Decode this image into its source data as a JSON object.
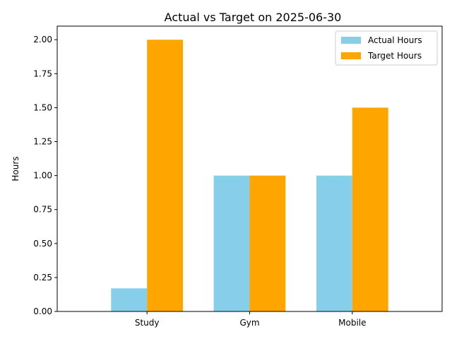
{
  "chart_data": {
    "type": "bar",
    "title": "Actual vs Target on 2025-06-30",
    "xlabel": "",
    "ylabel": "Hours",
    "categories": [
      "Study",
      "Gym",
      "Mobile"
    ],
    "series": [
      {
        "name": "Actual Hours",
        "values": [
          0.17,
          1.0,
          1.0
        ],
        "color": "#87ceeb"
      },
      {
        "name": "Target Hours",
        "values": [
          2.0,
          1.0,
          1.5
        ],
        "color": "#ffa500"
      }
    ],
    "ylim": [
      0,
      2.1
    ],
    "yticks": [
      "0.00",
      "0.25",
      "0.50",
      "0.75",
      "1.00",
      "1.25",
      "1.50",
      "1.75",
      "2.00"
    ],
    "grid": false,
    "legend_position": "top-right"
  }
}
